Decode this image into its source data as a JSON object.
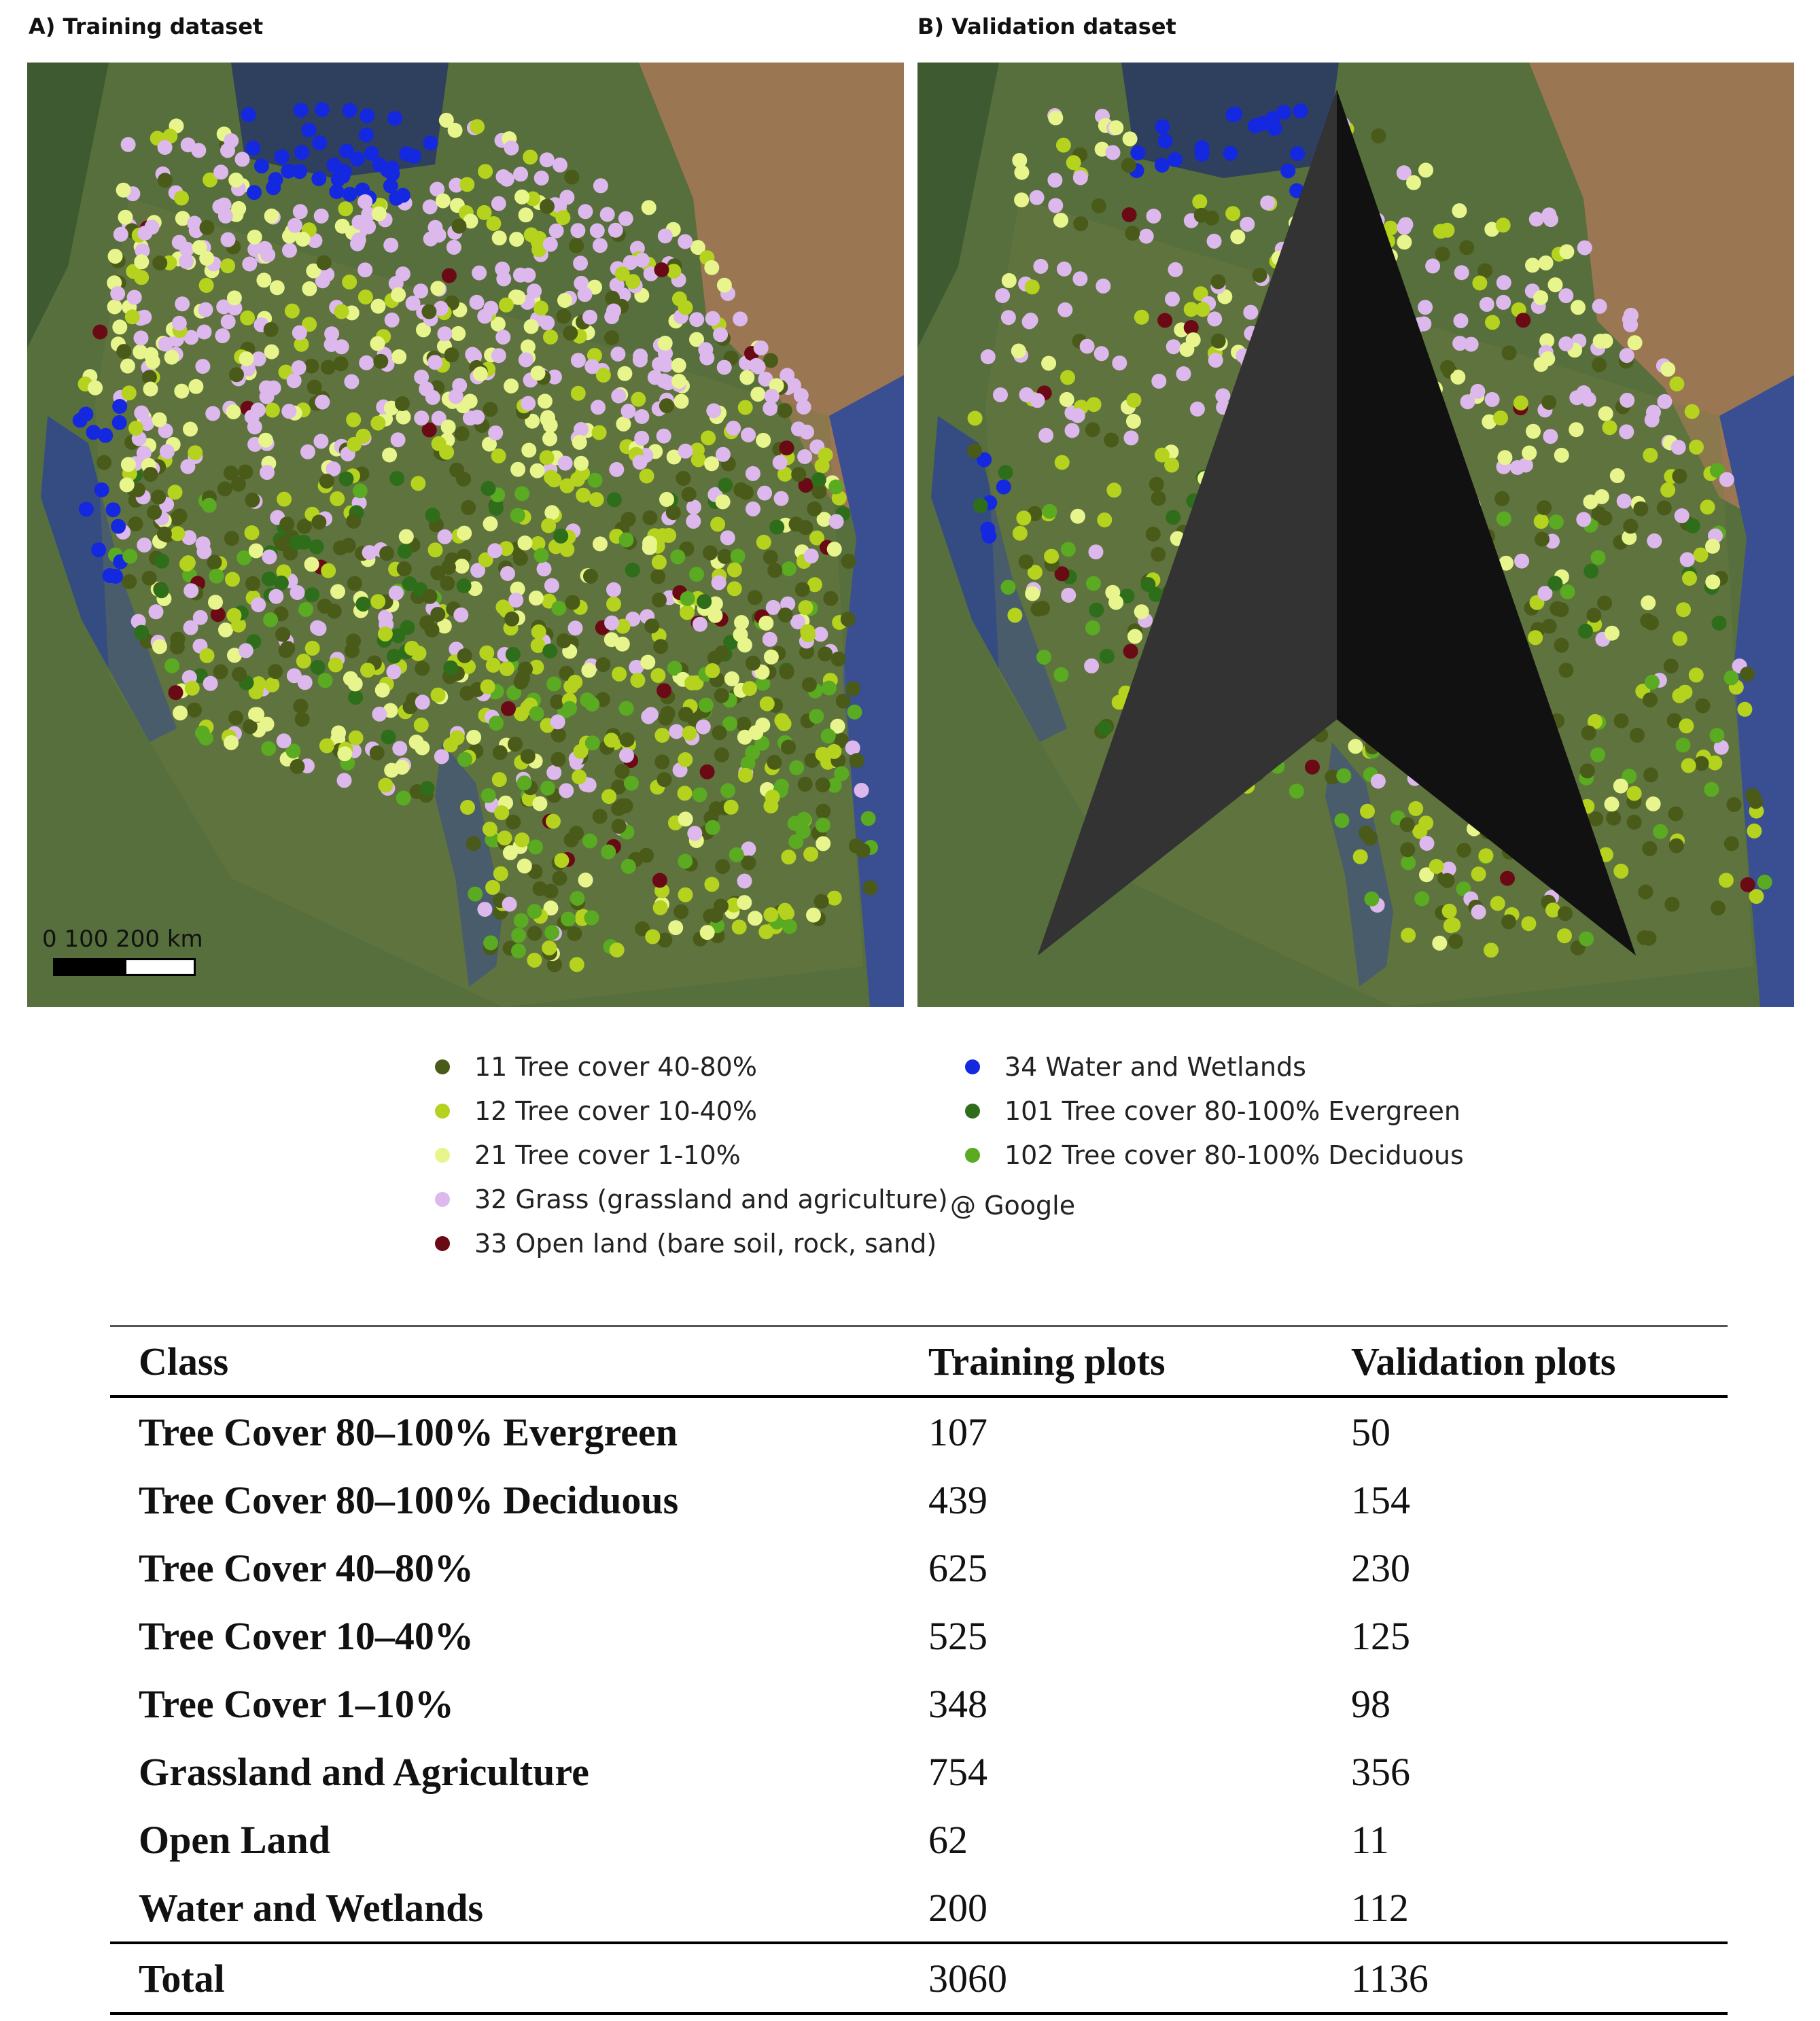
{
  "panels": {
    "training_title": "A) Training dataset",
    "validation_title": "B) Validation dataset"
  },
  "scale_bar": {
    "label": "0     100   200 km"
  },
  "credit": "@ Google",
  "colors": {
    "c11": "#4a5a18",
    "c12": "#b4d21e",
    "c21": "#e8f58c",
    "c32": "#dcb8ec",
    "c33": "#6a0a14",
    "c34": "#1428e0",
    "c101": "#2e6e1a",
    "c102": "#5aaa22"
  },
  "legend": [
    {
      "code": "11",
      "label": "11 Tree cover 40-80%",
      "color": "#4a5a18"
    },
    {
      "code": "12",
      "label": "12 Tree cover 10-40%",
      "color": "#b4d21e"
    },
    {
      "code": "21",
      "label": "21 Tree cover 1-10%",
      "color": "#e8f58c"
    },
    {
      "code": "32",
      "label": "32 Grass (grassland and agriculture)",
      "color": "#dcb8ec"
    },
    {
      "code": "33",
      "label": "33 Open land (bare soil, rock, sand)",
      "color": "#6a0a14"
    },
    {
      "code": "34",
      "label": "34 Water and Wetlands",
      "color": "#1428e0"
    },
    {
      "code": "101",
      "label": "101 Tree cover 80-100% Evergreen",
      "color": "#2e6e1a"
    },
    {
      "code": "102",
      "label": "102 Tree cover 80-100% Deciduous",
      "color": "#5aaa22"
    }
  ],
  "table": {
    "headers": [
      "Class",
      "Training plots",
      "Validation plots"
    ],
    "rows": [
      [
        "Tree Cover 80–100% Evergreen",
        "107",
        "50"
      ],
      [
        "Tree Cover 80–100% Deciduous",
        "439",
        "154"
      ],
      [
        "Tree Cover 40–80%",
        "625",
        "230"
      ],
      [
        "Tree Cover 10–40%",
        "525",
        "125"
      ],
      [
        "Tree Cover 1–10%",
        "348",
        "98"
      ],
      [
        "Grassland and Agriculture",
        "754",
        "356"
      ],
      [
        "Open Land",
        "62",
        "11"
      ],
      [
        "Water and Wetlands",
        "200",
        "112"
      ]
    ],
    "total": [
      "Total",
      "3060",
      "1136"
    ]
  }
}
